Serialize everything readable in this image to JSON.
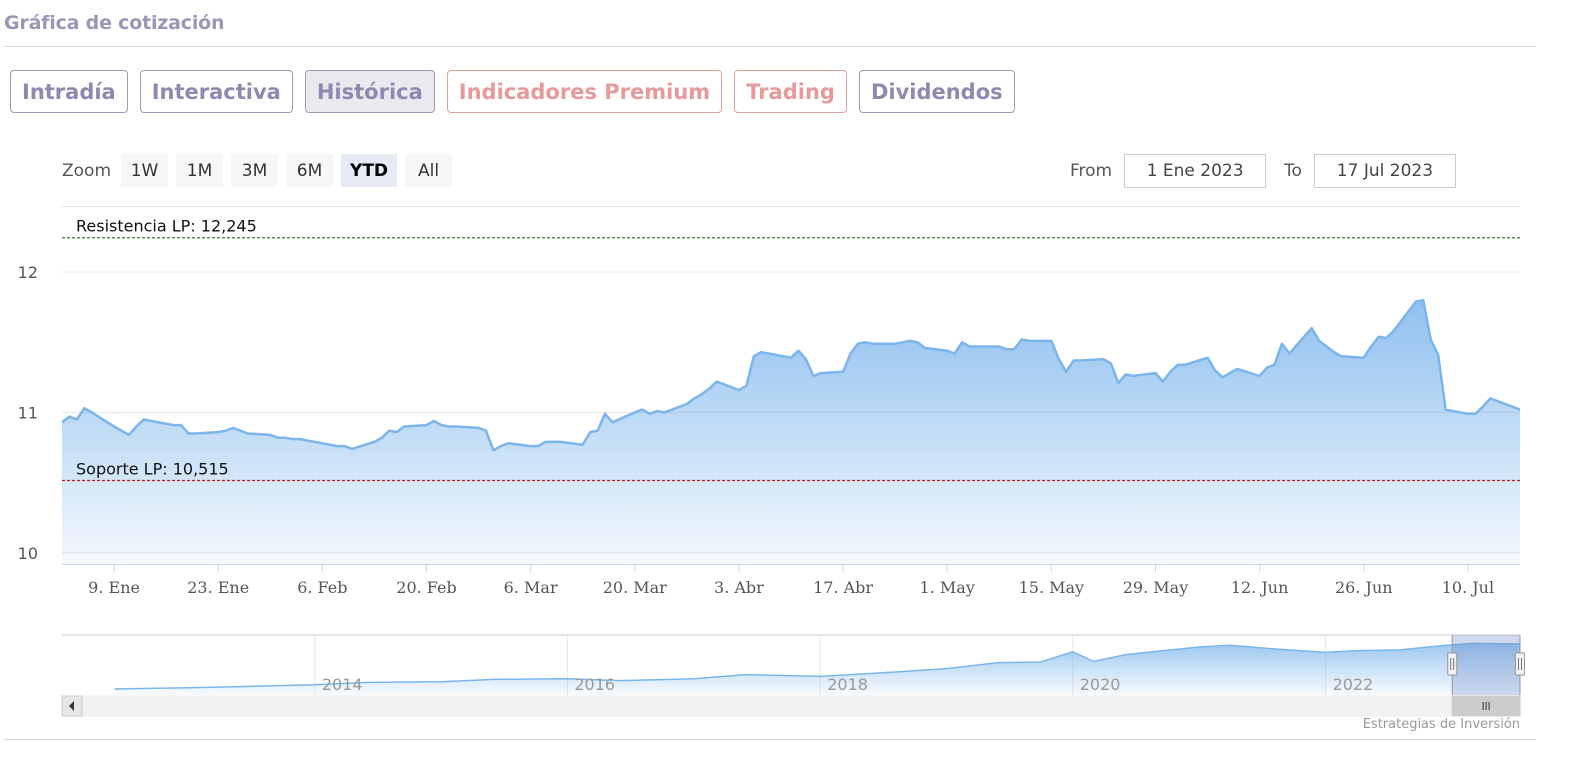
{
  "section": {
    "title": "Gráfica de cotización"
  },
  "tabs": [
    {
      "label": "Intradía",
      "state": "normal"
    },
    {
      "label": "Interactiva",
      "state": "normal"
    },
    {
      "label": "Histórica",
      "state": "active"
    },
    {
      "label": "Indicadores Premium",
      "state": "premium"
    },
    {
      "label": "Trading",
      "state": "premium"
    },
    {
      "label": "Dividendos",
      "state": "normal"
    }
  ],
  "zoom": {
    "label": "Zoom",
    "buttons": [
      "1W",
      "1M",
      "3M",
      "6M",
      "YTD",
      "All"
    ],
    "selected": "YTD"
  },
  "range": {
    "from_label": "From",
    "from_value": "1 Ene 2023",
    "to_label": "To",
    "to_value": "17 Jul 2023"
  },
  "credit": "Estrategias de Inversión",
  "colors": {
    "line": "#7cb5ec",
    "resistance": "#2e7d32",
    "support": "#b71c1c",
    "tab_text": "#8e89b0",
    "premium_text": "#e69a9a"
  },
  "chart_data": {
    "type": "area",
    "xlabel": "",
    "ylabel": "",
    "ylim": [
      9.92,
      12.3
    ],
    "yticks": [
      10,
      11,
      12
    ],
    "grid": true,
    "x_range": [
      "2023-01-02",
      "2023-07-17"
    ],
    "xticks": [
      {
        "label": "9. Ene",
        "date": "2023-01-09"
      },
      {
        "label": "23. Ene",
        "date": "2023-01-23"
      },
      {
        "label": "6. Feb",
        "date": "2023-02-06"
      },
      {
        "label": "20. Feb",
        "date": "2023-02-20"
      },
      {
        "label": "6. Mar",
        "date": "2023-03-06"
      },
      {
        "label": "20. Mar",
        "date": "2023-03-20"
      },
      {
        "label": "3. Abr",
        "date": "2023-04-03"
      },
      {
        "label": "17. Abr",
        "date": "2023-04-17"
      },
      {
        "label": "1. May",
        "date": "2023-05-01"
      },
      {
        "label": "15. May",
        "date": "2023-05-15"
      },
      {
        "label": "29. May",
        "date": "2023-05-29"
      },
      {
        "label": "12. Jun",
        "date": "2023-06-12"
      },
      {
        "label": "26. Jun",
        "date": "2023-06-26"
      },
      {
        "label": "10. Jul",
        "date": "2023-07-10"
      }
    ],
    "series": [
      {
        "points": [
          [
            "2023-01-02",
            10.93
          ],
          [
            "2023-01-03",
            10.97
          ],
          [
            "2023-01-04",
            10.95
          ],
          [
            "2023-01-05",
            11.03
          ],
          [
            "2023-01-06",
            11.0
          ],
          [
            "2023-01-09",
            10.9
          ],
          [
            "2023-01-10",
            10.87
          ],
          [
            "2023-01-11",
            10.84
          ],
          [
            "2023-01-12",
            10.9
          ],
          [
            "2023-01-13",
            10.95
          ],
          [
            "2023-01-16",
            10.92
          ],
          [
            "2023-01-17",
            10.91
          ],
          [
            "2023-01-18",
            10.91
          ],
          [
            "2023-01-19",
            10.85
          ],
          [
            "2023-01-20",
            10.85
          ],
          [
            "2023-01-23",
            10.86
          ],
          [
            "2023-01-24",
            10.87
          ],
          [
            "2023-01-25",
            10.89
          ],
          [
            "2023-01-26",
            10.87
          ],
          [
            "2023-01-27",
            10.85
          ],
          [
            "2023-01-30",
            10.84
          ],
          [
            "2023-01-31",
            10.82
          ],
          [
            "2023-02-01",
            10.82
          ],
          [
            "2023-02-02",
            10.81
          ],
          [
            "2023-02-03",
            10.81
          ],
          [
            "2023-02-06",
            10.78
          ],
          [
            "2023-02-07",
            10.77
          ],
          [
            "2023-02-08",
            10.76
          ],
          [
            "2023-02-09",
            10.76
          ],
          [
            "2023-02-10",
            10.74
          ],
          [
            "2023-02-13",
            10.79
          ],
          [
            "2023-02-14",
            10.82
          ],
          [
            "2023-02-15",
            10.87
          ],
          [
            "2023-02-16",
            10.86
          ],
          [
            "2023-02-17",
            10.9
          ],
          [
            "2023-02-20",
            10.91
          ],
          [
            "2023-02-21",
            10.94
          ],
          [
            "2023-02-22",
            10.91
          ],
          [
            "2023-02-23",
            10.9
          ],
          [
            "2023-02-24",
            10.9
          ],
          [
            "2023-02-27",
            10.89
          ],
          [
            "2023-02-28",
            10.87
          ],
          [
            "2023-03-01",
            10.73
          ],
          [
            "2023-03-02",
            10.76
          ],
          [
            "2023-03-03",
            10.78
          ],
          [
            "2023-03-06",
            10.76
          ],
          [
            "2023-03-07",
            10.76
          ],
          [
            "2023-03-08",
            10.79
          ],
          [
            "2023-03-09",
            10.79
          ],
          [
            "2023-03-10",
            10.79
          ],
          [
            "2023-03-13",
            10.77
          ],
          [
            "2023-03-14",
            10.86
          ],
          [
            "2023-03-15",
            10.87
          ],
          [
            "2023-03-16",
            10.99
          ],
          [
            "2023-03-17",
            10.93
          ],
          [
            "2023-03-20",
            11.0
          ],
          [
            "2023-03-21",
            11.02
          ],
          [
            "2023-03-22",
            10.99
          ],
          [
            "2023-03-23",
            11.01
          ],
          [
            "2023-03-24",
            11.0
          ],
          [
            "2023-03-27",
            11.06
          ],
          [
            "2023-03-28",
            11.1
          ],
          [
            "2023-03-29",
            11.13
          ],
          [
            "2023-03-30",
            11.17
          ],
          [
            "2023-03-31",
            11.22
          ],
          [
            "2023-04-03",
            11.16
          ],
          [
            "2023-04-04",
            11.19
          ],
          [
            "2023-04-05",
            11.4
          ],
          [
            "2023-04-06",
            11.43
          ],
          [
            "2023-04-10",
            11.39
          ],
          [
            "2023-04-11",
            11.44
          ],
          [
            "2023-04-12",
            11.38
          ],
          [
            "2023-04-13",
            11.26
          ],
          [
            "2023-04-14",
            11.28
          ],
          [
            "2023-04-17",
            11.29
          ],
          [
            "2023-04-18",
            11.42
          ],
          [
            "2023-04-19",
            11.49
          ],
          [
            "2023-04-20",
            11.5
          ],
          [
            "2023-04-21",
            11.49
          ],
          [
            "2023-04-24",
            11.49
          ],
          [
            "2023-04-25",
            11.5
          ],
          [
            "2023-04-26",
            11.51
          ],
          [
            "2023-04-27",
            11.5
          ],
          [
            "2023-04-28",
            11.46
          ],
          [
            "2023-05-01",
            11.44
          ],
          [
            "2023-05-02",
            11.42
          ],
          [
            "2023-05-03",
            11.5
          ],
          [
            "2023-05-04",
            11.47
          ],
          [
            "2023-05-05",
            11.47
          ],
          [
            "2023-05-08",
            11.47
          ],
          [
            "2023-05-09",
            11.45
          ],
          [
            "2023-05-10",
            11.45
          ],
          [
            "2023-05-11",
            11.52
          ],
          [
            "2023-05-12",
            11.51
          ],
          [
            "2023-05-15",
            11.51
          ],
          [
            "2023-05-16",
            11.38
          ],
          [
            "2023-05-17",
            11.29
          ],
          [
            "2023-05-18",
            11.37
          ],
          [
            "2023-05-19",
            11.37
          ],
          [
            "2023-05-22",
            11.38
          ],
          [
            "2023-05-23",
            11.35
          ],
          [
            "2023-05-24",
            11.21
          ],
          [
            "2023-05-25",
            11.27
          ],
          [
            "2023-05-26",
            11.26
          ],
          [
            "2023-05-29",
            11.28
          ],
          [
            "2023-05-30",
            11.22
          ],
          [
            "2023-05-31",
            11.29
          ],
          [
            "2023-06-01",
            11.34
          ],
          [
            "2023-06-02",
            11.34
          ],
          [
            "2023-06-05",
            11.39
          ],
          [
            "2023-06-06",
            11.3
          ],
          [
            "2023-06-07",
            11.25
          ],
          [
            "2023-06-08",
            11.28
          ],
          [
            "2023-06-09",
            11.31
          ],
          [
            "2023-06-12",
            11.26
          ],
          [
            "2023-06-13",
            11.32
          ],
          [
            "2023-06-14",
            11.34
          ],
          [
            "2023-06-15",
            11.49
          ],
          [
            "2023-06-16",
            11.42
          ],
          [
            "2023-06-19",
            11.6
          ],
          [
            "2023-06-20",
            11.51
          ],
          [
            "2023-06-21",
            11.47
          ],
          [
            "2023-06-22",
            11.43
          ],
          [
            "2023-06-23",
            11.4
          ],
          [
            "2023-06-26",
            11.39
          ],
          [
            "2023-06-27",
            11.47
          ],
          [
            "2023-06-28",
            11.54
          ],
          [
            "2023-06-29",
            11.53
          ],
          [
            "2023-06-30",
            11.58
          ],
          [
            "2023-07-03",
            11.79
          ],
          [
            "2023-07-04",
            11.8
          ],
          [
            "2023-07-05",
            11.52
          ],
          [
            "2023-07-06",
            11.41
          ],
          [
            "2023-07-07",
            11.02
          ],
          [
            "2023-07-10",
            10.99
          ],
          [
            "2023-07-11",
            10.99
          ],
          [
            "2023-07-12",
            11.04
          ],
          [
            "2023-07-13",
            11.1
          ],
          [
            "2023-07-14",
            11.08
          ],
          [
            "2023-07-17",
            11.02
          ]
        ]
      }
    ],
    "levels": [
      {
        "label": "Resistencia LP: 12,245",
        "value": 12.245,
        "color": "#2e7d32"
      },
      {
        "label": "Soporte LP: 10,515",
        "value": 10.515,
        "color": "#b71c1c"
      }
    ],
    "navigator": {
      "year_labels": [
        "2014",
        "2016",
        "2018",
        "2020",
        "2022"
      ],
      "year_dates": [
        "2014-01-01",
        "2016-01-01",
        "2018-01-01",
        "2020-01-01",
        "2022-01-01"
      ],
      "x_range": [
        "2012-01-01",
        "2023-07-17"
      ],
      "history": [
        [
          "2012-06-01",
          0.1
        ],
        [
          "2013-01-01",
          0.12
        ],
        [
          "2013-06-01",
          0.14
        ],
        [
          "2014-01-01",
          0.17
        ],
        [
          "2014-06-01",
          0.21
        ],
        [
          "2015-01-01",
          0.22
        ],
        [
          "2015-06-01",
          0.26
        ],
        [
          "2016-01-01",
          0.27
        ],
        [
          "2016-06-01",
          0.24
        ],
        [
          "2017-01-01",
          0.27
        ],
        [
          "2017-06-01",
          0.34
        ],
        [
          "2018-01-01",
          0.31
        ],
        [
          "2018-06-01",
          0.36
        ],
        [
          "2019-01-01",
          0.44
        ],
        [
          "2019-06-01",
          0.54
        ],
        [
          "2019-10-01",
          0.55
        ],
        [
          "2020-01-01",
          0.72
        ],
        [
          "2020-03-01",
          0.56
        ],
        [
          "2020-06-01",
          0.67
        ],
        [
          "2020-09-01",
          0.73
        ],
        [
          "2021-01-01",
          0.8
        ],
        [
          "2021-04-01",
          0.83
        ],
        [
          "2021-08-01",
          0.77
        ],
        [
          "2022-01-01",
          0.71
        ],
        [
          "2022-04-01",
          0.74
        ],
        [
          "2022-08-01",
          0.75
        ],
        [
          "2022-12-01",
          0.82
        ],
        [
          "2023-03-01",
          0.86
        ],
        [
          "2023-07-17",
          0.85
        ]
      ],
      "selection": [
        "2023-01-02",
        "2023-07-17"
      ]
    }
  }
}
